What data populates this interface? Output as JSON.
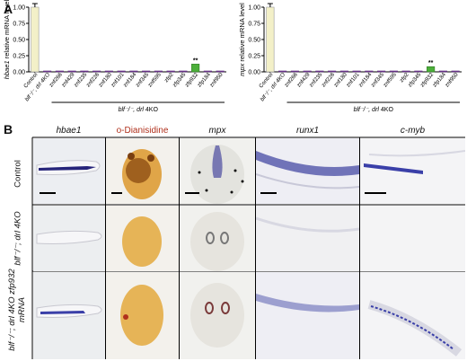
{
  "panel_a_label": "A",
  "panel_b_label": "B",
  "colors": {
    "control_bar": "#f3f0c8",
    "zfp932_bar": "#4caf3a",
    "other_bar": "#7b3fa0",
    "wish_blue": "#3a3fa8",
    "stain_orange": "#b8741a"
  },
  "chart_data": [
    {
      "type": "bar",
      "ylabel_italic": "hbae1",
      "ylabel_rest": " relative mRNA level",
      "ylim": [
        0,
        1.0
      ],
      "yticks": [
        "0.00",
        "0.25",
        "0.50",
        "0.75",
        "1.00"
      ],
      "categories": [
        "Control",
        "blf⁻/⁻, drl 4KO",
        "znf266",
        "znf429",
        "znf235",
        "znf226",
        "znf180",
        "znf101",
        "znf184",
        "znf345",
        "znf595",
        "zfp2",
        "zfp345",
        "zfp932",
        "zfp184",
        "znf950"
      ],
      "values": [
        1.0,
        0.01,
        0.01,
        0.01,
        0.01,
        0.01,
        0.01,
        0.01,
        0.01,
        0.01,
        0.01,
        0.01,
        0.01,
        0.12,
        0.01,
        0.01
      ],
      "significance": {
        "zfp932": "**"
      },
      "group_label_italic": "blf⁻/⁻, drl",
      "group_label_rest": " 4KO"
    },
    {
      "type": "bar",
      "ylabel_italic": "mpx",
      "ylabel_rest": " relative mRNA level",
      "ylim": [
        0,
        1.0
      ],
      "yticks": [
        "0.00",
        "0.25",
        "0.50",
        "0.75",
        "1.00"
      ],
      "categories": [
        "Control",
        "blf⁻/⁻, drl 4KO",
        "znf266",
        "znf429",
        "znf235",
        "znf226",
        "znf180",
        "znf101",
        "znf184",
        "znf345",
        "znf595",
        "zfp2",
        "zfp345",
        "zfp932",
        "zfp184",
        "znf950"
      ],
      "values": [
        1.0,
        0.01,
        0.01,
        0.01,
        0.01,
        0.01,
        0.01,
        0.01,
        0.01,
        0.01,
        0.01,
        0.01,
        0.01,
        0.08,
        0.01,
        0.01
      ],
      "significance": {
        "zfp932": "**"
      },
      "group_label_italic": "blf⁻/⁻, drl",
      "group_label_rest": " 4KO"
    }
  ],
  "panel_b": {
    "columns": [
      "hbae1",
      "o-Dianisidine",
      "mpx",
      "runx1",
      "c-myb"
    ],
    "rows": [
      "Control",
      "blf⁻/⁻; drl 4KO",
      "blf⁻/⁻; drl 4KO zfp932 mRNA"
    ]
  }
}
